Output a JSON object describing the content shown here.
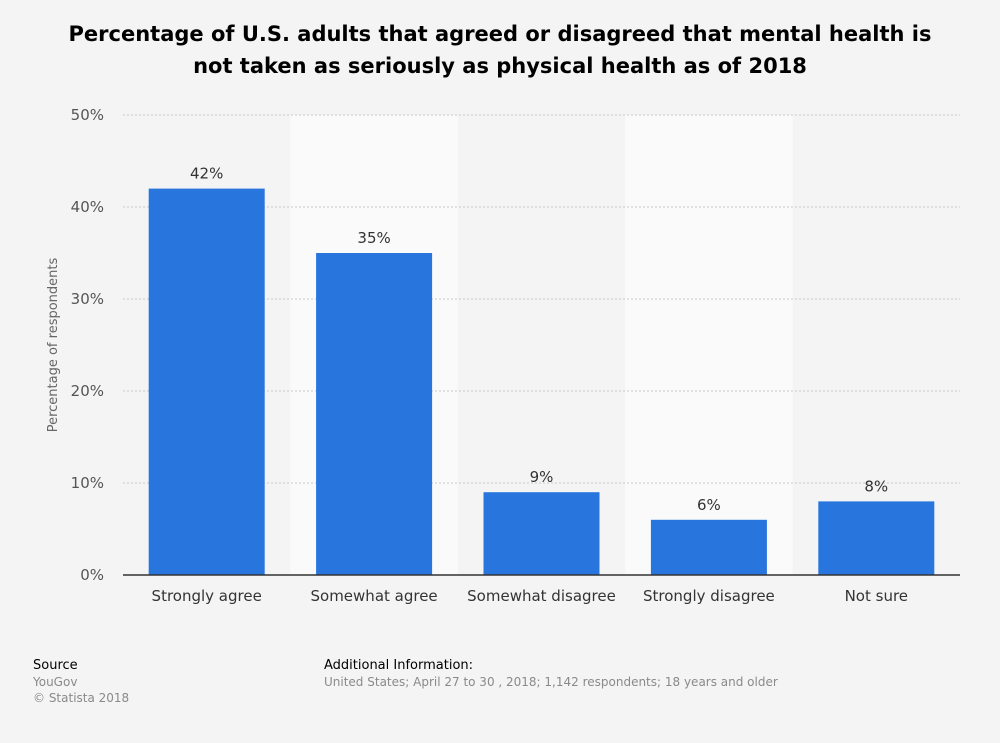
{
  "chart_data": {
    "type": "bar",
    "title": "Percentage of U.S. adults that agreed or disagreed that mental health is not taken as seriously as physical health as of 2018",
    "categories": [
      "Strongly agree",
      "Somewhat agree",
      "Somewhat disagree",
      "Strongly disagree",
      "Not sure"
    ],
    "values": [
      42,
      35,
      9,
      6,
      8
    ],
    "data_labels": [
      "42%",
      "35%",
      "9%",
      "6%",
      "8%"
    ],
    "ylabel": "Percentage of respondents",
    "xlabel": "",
    "ylim": [
      0,
      50
    ],
    "yticks": [
      0,
      10,
      20,
      30,
      40,
      50
    ],
    "ytick_labels": [
      "0%",
      "10%",
      "20%",
      "30%",
      "40%",
      "50%"
    ],
    "grid": true,
    "bar_color": "#2775dd"
  },
  "footer": {
    "source_heading": "Source",
    "source_name": "YouGov",
    "copyright": "© Statista 2018",
    "additional_heading": "Additional Information:",
    "additional_text": "United States; April 27 to 30 , 2018; 1,142 respondents; 18 years and older"
  }
}
